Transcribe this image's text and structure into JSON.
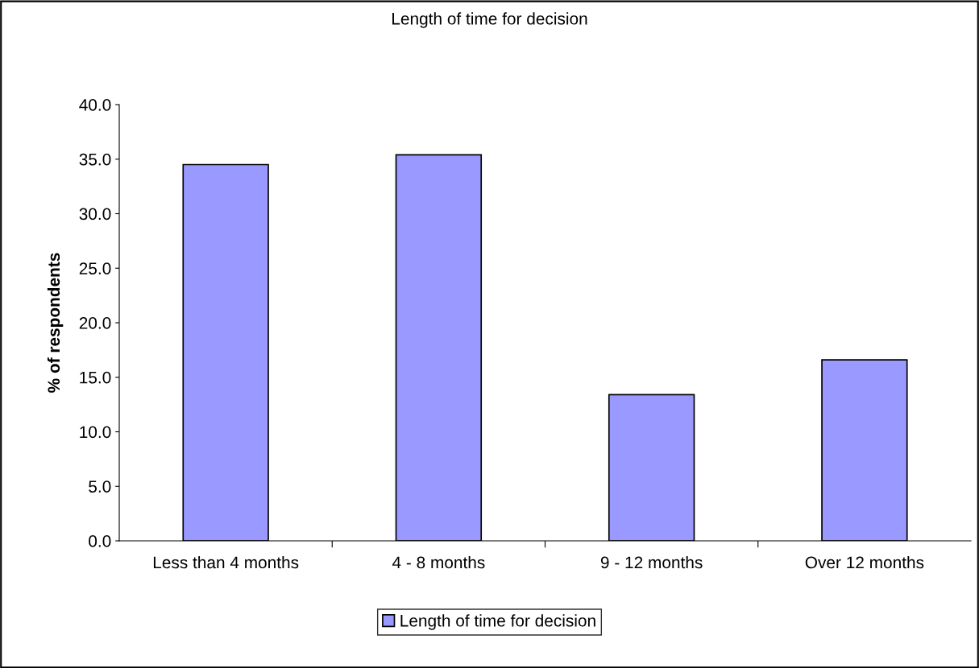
{
  "chart_data": {
    "type": "bar",
    "title": "Length of time for decision",
    "ylabel": "% of respondents",
    "categories": [
      "Less than 4 months",
      "4 - 8 months",
      "9 - 12 months",
      "Over 12 months"
    ],
    "series": [
      {
        "name": "Length of time for decision",
        "color": "#9999ff",
        "values": [
          34.5,
          35.4,
          13.4,
          16.6
        ]
      }
    ],
    "ylim": [
      0,
      40
    ],
    "yticks": [
      {
        "value": 0,
        "label": "0.0"
      },
      {
        "value": 5,
        "label": "5.0"
      },
      {
        "value": 10,
        "label": "10.0"
      },
      {
        "value": 15,
        "label": "15.0"
      },
      {
        "value": 20,
        "label": "20.0"
      },
      {
        "value": 25,
        "label": "25.0"
      },
      {
        "value": 30,
        "label": "30.0"
      },
      {
        "value": 35,
        "label": "35.0"
      },
      {
        "value": 40,
        "label": "40.0"
      }
    ],
    "grid": false,
    "legend": "bottom"
  }
}
